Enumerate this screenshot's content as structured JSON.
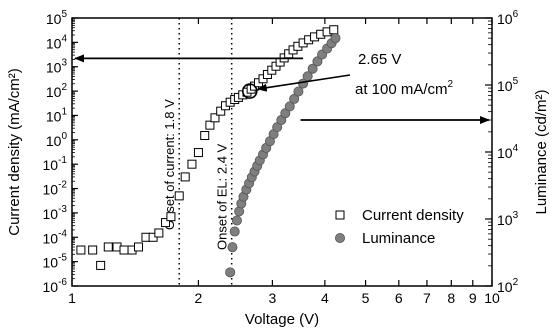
{
  "chart_data": {
    "type": "scatter",
    "title": "",
    "xlabel": "Voltage (V)",
    "ylabel_left": "Current density (mA/cm²)",
    "ylabel_right": "Luminance (cd/m²)",
    "x_scale": "log",
    "y_left_scale": "log",
    "y_right_scale": "log",
    "xlim": [
      1,
      10
    ],
    "ylim_left": [
      1e-06,
      100000.0
    ],
    "ylim_right": [
      100,
      1000000
    ],
    "grid": false,
    "legend_position": "middle-right",
    "x_ticks": [
      {
        "v": 1,
        "label": "1"
      },
      {
        "v": 2,
        "label": "2"
      },
      {
        "v": 3,
        "label": "3"
      },
      {
        "v": 4,
        "label": "4"
      },
      {
        "v": 5,
        "label": "5"
      },
      {
        "v": 6,
        "label": "6"
      },
      {
        "v": 7,
        "label": "7"
      },
      {
        "v": 8,
        "label": "8"
      },
      {
        "v": 9,
        "label": "9"
      },
      {
        "v": 10,
        "label": "10"
      }
    ],
    "y_left_ticks": [
      {
        "v": 1e-06,
        "base": "10",
        "exp": "-6"
      },
      {
        "v": 1e-05,
        "base": "10",
        "exp": "-5"
      },
      {
        "v": 0.0001,
        "base": "10",
        "exp": "-4"
      },
      {
        "v": 0.001,
        "base": "10",
        "exp": "-3"
      },
      {
        "v": 0.01,
        "base": "10",
        "exp": "-2"
      },
      {
        "v": 0.1,
        "base": "10",
        "exp": "-1"
      },
      {
        "v": 1,
        "base": "10",
        "exp": "0"
      },
      {
        "v": 10,
        "base": "10",
        "exp": "1"
      },
      {
        "v": 100,
        "base": "10",
        "exp": "2"
      },
      {
        "v": 1000,
        "base": "10",
        "exp": "3"
      },
      {
        "v": 10000,
        "base": "10",
        "exp": "4"
      },
      {
        "v": 100000,
        "base": "10",
        "exp": "5"
      }
    ],
    "y_right_ticks": [
      {
        "v": 100,
        "base": "10",
        "exp": "2"
      },
      {
        "v": 1000,
        "base": "10",
        "exp": "3"
      },
      {
        "v": 10000,
        "base": "10",
        "exp": "4"
      },
      {
        "v": 100000,
        "base": "10",
        "exp": "5"
      },
      {
        "v": 1000000,
        "base": "10",
        "exp": "6"
      }
    ],
    "series": [
      {
        "name": "Current density",
        "axis": "left",
        "marker": "open-square",
        "points": [
          [
            1.05,
            3e-05
          ],
          [
            1.12,
            3e-05
          ],
          [
            1.17,
            7e-06
          ],
          [
            1.22,
            4e-05
          ],
          [
            1.28,
            4e-05
          ],
          [
            1.33,
            3e-05
          ],
          [
            1.39,
            3e-05
          ],
          [
            1.44,
            4e-05
          ],
          [
            1.5,
            0.0001
          ],
          [
            1.56,
            0.0001
          ],
          [
            1.61,
            0.00015
          ],
          [
            1.67,
            0.0004
          ],
          [
            1.72,
            0.0007
          ],
          [
            1.8,
            0.005
          ],
          [
            1.86,
            0.03
          ],
          [
            1.93,
            0.1
          ],
          [
            2.0,
            0.3
          ],
          [
            2.07,
            1.5
          ],
          [
            2.13,
            4
          ],
          [
            2.19,
            8
          ],
          [
            2.26,
            15
          ],
          [
            2.32,
            25
          ],
          [
            2.38,
            35
          ],
          [
            2.44,
            45
          ],
          [
            2.49,
            55
          ],
          [
            2.55,
            70
          ],
          [
            2.61,
            90
          ],
          [
            2.67,
            120
          ],
          [
            2.72,
            160
          ],
          [
            2.78,
            220
          ],
          [
            2.85,
            320
          ],
          [
            2.92,
            480
          ],
          [
            2.99,
            720
          ],
          [
            3.06,
            1050
          ],
          [
            3.13,
            1550
          ],
          [
            3.2,
            2300
          ],
          [
            3.28,
            3400
          ],
          [
            3.36,
            4900
          ],
          [
            3.45,
            6900
          ],
          [
            3.55,
            9500
          ],
          [
            3.66,
            12800
          ],
          [
            3.78,
            16800
          ],
          [
            3.91,
            21500
          ],
          [
            4.05,
            27000
          ],
          [
            4.2,
            33000
          ]
        ]
      },
      {
        "name": "Luminance",
        "axis": "right",
        "marker": "filled-circle",
        "points": [
          [
            2.38,
            160
          ],
          [
            2.41,
            380
          ],
          [
            2.44,
            650
          ],
          [
            2.47,
            950
          ],
          [
            2.5,
            1300
          ],
          [
            2.53,
            1700
          ],
          [
            2.56,
            2150
          ],
          [
            2.6,
            2750
          ],
          [
            2.64,
            3400
          ],
          [
            2.68,
            4200
          ],
          [
            2.72,
            5100
          ],
          [
            2.76,
            6200
          ],
          [
            2.8,
            7500
          ],
          [
            2.85,
            9200
          ],
          [
            2.9,
            11500
          ],
          [
            2.96,
            14500
          ],
          [
            3.02,
            18500
          ],
          [
            3.08,
            23500
          ],
          [
            3.15,
            30000
          ],
          [
            3.22,
            38000
          ],
          [
            3.3,
            48000
          ],
          [
            3.38,
            62000
          ],
          [
            3.46,
            80000
          ],
          [
            3.55,
            105000
          ],
          [
            3.64,
            135000
          ],
          [
            3.74,
            175000
          ],
          [
            3.84,
            225000
          ],
          [
            3.94,
            285000
          ],
          [
            4.05,
            350000
          ],
          [
            4.15,
            420000
          ],
          [
            4.24,
            500000
          ]
        ]
      }
    ],
    "vertical_lines": [
      {
        "x": 1.8,
        "label": "Onset of current: 1.8 V"
      },
      {
        "x": 2.4,
        "label": "Onset of EL: 2.4 V"
      }
    ],
    "annotation": {
      "line1": "2.65 V",
      "line2_text": "at 100 mA/cm",
      "line2_sup": "2",
      "circle_at": [
        2.65,
        100
      ]
    },
    "arrows": [
      {
        "from": [
          3.55,
          2200
        ],
        "to": [
          1.0,
          2200
        ],
        "axis": "left",
        "meaning": "current density → left axis"
      },
      {
        "from": [
          3.5,
          30000
        ],
        "to": [
          10,
          30000
        ],
        "axis": "right",
        "meaning": "luminance → right axis"
      }
    ]
  }
}
